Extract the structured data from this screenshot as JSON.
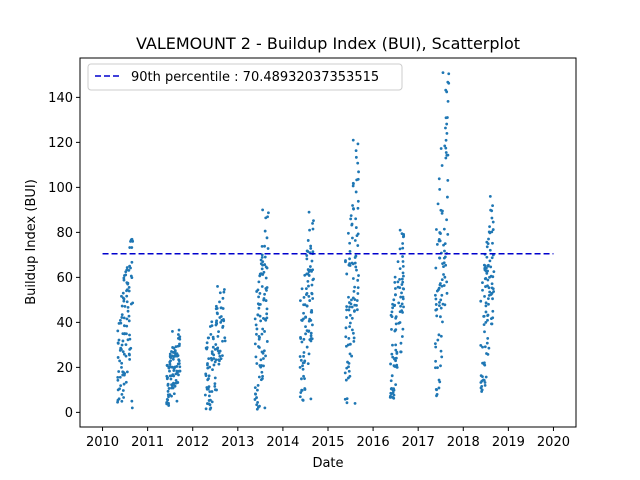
{
  "chart_data": {
    "type": "scatter",
    "title": "VALEMOUNT 2 - Buildup Index (BUI), Scatterplot",
    "xlabel": "Date",
    "ylabel": "Buildup Index (BUI)",
    "xlim": [
      2009.5,
      2020.5
    ],
    "ylim": [
      -6.5,
      157.5
    ],
    "x_ticks": [
      2010,
      2011,
      2012,
      2013,
      2014,
      2015,
      2016,
      2017,
      2018,
      2019,
      2020
    ],
    "x_tick_labels": [
      "2010",
      "2011",
      "2012",
      "2013",
      "2014",
      "2015",
      "2016",
      "2017",
      "2018",
      "2019",
      "2020"
    ],
    "y_ticks": [
      0,
      20,
      40,
      60,
      80,
      100,
      120,
      140
    ],
    "y_tick_labels": [
      "0",
      "20",
      "40",
      "60",
      "80",
      "100",
      "120",
      "140"
    ],
    "grid": false,
    "legend_position": "top-left",
    "colors": {
      "scatter": "#1f77b4",
      "percentile_line": "#0000cd"
    },
    "reference_line": {
      "name": "90th percentile : 70.48932037353515",
      "y": 70.48932037353515,
      "x_range": [
        2010,
        2020
      ],
      "style": "dashed"
    },
    "series": [
      {
        "season_ranges": [
          [
            2010.33,
            2010.67
          ],
          [
            2011.42,
            2011.72
          ],
          [
            2012.28,
            2012.72
          ],
          [
            2013.38,
            2013.68
          ],
          [
            2014.38,
            2014.68
          ],
          [
            2015.38,
            2015.68
          ],
          [
            2016.38,
            2016.68
          ],
          [
            2017.38,
            2017.68
          ],
          [
            2018.38,
            2018.68
          ]
        ],
        "season_bui_ranges": [
          [
            2,
            78
          ],
          [
            3,
            37
          ],
          [
            1,
            57
          ],
          [
            1,
            90
          ],
          [
            5,
            89
          ],
          [
            4,
            122
          ],
          [
            6,
            81
          ],
          [
            6,
            151
          ],
          [
            9,
            96
          ]
        ],
        "sample_points": [
          [
            2010.42,
            20
          ],
          [
            2010.45,
            35
          ],
          [
            2010.48,
            42
          ],
          [
            2010.52,
            25
          ],
          [
            2010.55,
            18
          ],
          [
            2010.6,
            65
          ],
          [
            2010.62,
            76
          ],
          [
            2010.65,
            5
          ],
          [
            2010.66,
            2
          ],
          [
            2011.45,
            12
          ],
          [
            2011.5,
            25
          ],
          [
            2011.55,
            36
          ],
          [
            2011.6,
            20
          ],
          [
            2011.65,
            5
          ],
          [
            2012.35,
            15
          ],
          [
            2012.4,
            2
          ],
          [
            2012.5,
            28
          ],
          [
            2012.55,
            56
          ],
          [
            2012.62,
            40
          ],
          [
            2013.45,
            12
          ],
          [
            2013.5,
            48
          ],
          [
            2013.55,
            90
          ],
          [
            2013.6,
            2
          ],
          [
            2014.45,
            22
          ],
          [
            2014.52,
            55
          ],
          [
            2014.58,
            89
          ],
          [
            2014.62,
            6
          ],
          [
            2015.45,
            30
          ],
          [
            2015.52,
            50
          ],
          [
            2015.56,
            121
          ],
          [
            2015.6,
            4
          ],
          [
            2016.45,
            10
          ],
          [
            2016.5,
            30
          ],
          [
            2016.55,
            58
          ],
          [
            2016.6,
            81
          ],
          [
            2017.42,
            8
          ],
          [
            2017.5,
            50
          ],
          [
            2017.55,
            151
          ],
          [
            2017.6,
            75
          ],
          [
            2018.42,
            10
          ],
          [
            2018.5,
            40
          ],
          [
            2018.55,
            65
          ],
          [
            2018.6,
            96
          ]
        ]
      }
    ]
  }
}
